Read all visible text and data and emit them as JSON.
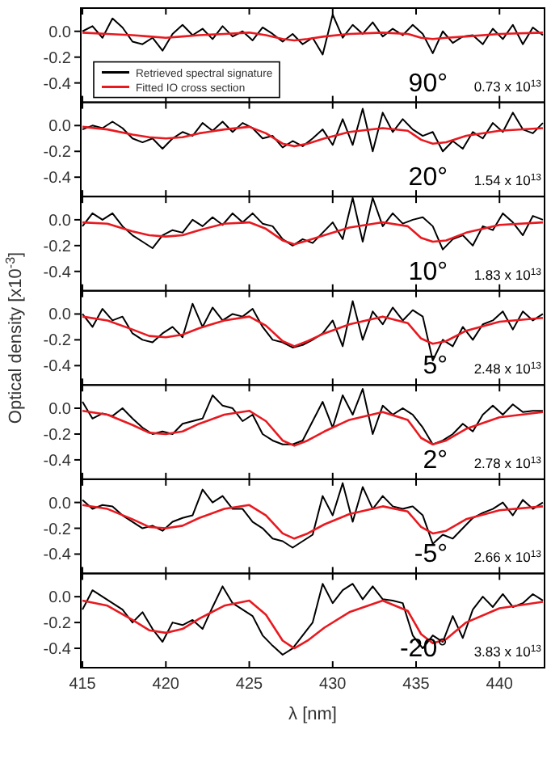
{
  "chart_data": [
    {
      "type": "line",
      "xlim": [
        414.9,
        442.7
      ],
      "ylim": [
        -0.55,
        0.18
      ],
      "xticks": [
        415,
        420,
        425,
        430,
        435,
        440
      ],
      "yticks": [
        {
          "value": 0,
          "label": "0.0"
        },
        {
          "value": -0.2,
          "label": "-0.2"
        },
        {
          "value": -0.4,
          "label": "-0.4"
        }
      ],
      "tick_labels": "y",
      "legend": "bottom left",
      "annotations": [
        "90°",
        "0.73 x 10$^{13}$"
      ],
      "x": [
        415,
        415.6,
        416.2,
        416.8,
        417.4,
        418,
        418.6,
        419.2,
        419.8,
        420.4,
        421,
        421.6,
        422.2,
        422.8,
        423.4,
        424,
        424.6,
        425.2,
        425.8,
        426.4,
        427,
        427.6,
        428.2,
        428.8,
        429.4,
        430,
        430.6,
        431.2,
        431.8,
        432.4,
        433,
        433.6,
        434.2,
        434.8,
        435.4,
        436,
        436.6,
        437.2,
        437.8,
        438.4,
        439,
        439.6,
        440.2,
        440.8,
        441.4,
        442,
        442.6
      ],
      "series": [
        {
          "name": "Retrieved spectral signature",
          "color": "#000000",
          "values": [
            0.0,
            0.04,
            -0.05,
            0.1,
            0.03,
            -0.08,
            -0.1,
            -0.05,
            -0.15,
            -0.02,
            0.05,
            -0.03,
            0.02,
            -0.06,
            0.04,
            -0.04,
            0.0,
            -0.07,
            0.03,
            -0.02,
            -0.08,
            -0.02,
            -0.1,
            -0.05,
            -0.18,
            0.13,
            -0.05,
            0.05,
            -0.02,
            0.07,
            -0.04,
            0.02,
            -0.03,
            0.05,
            -0.02,
            -0.17,
            0.0,
            -0.09,
            -0.04,
            -0.03,
            -0.1,
            0.02,
            -0.06,
            0.05,
            -0.1,
            0.03,
            -0.03
          ]
        },
        {
          "name": "Fitted IO cross section",
          "color": "#e8191f",
          "x": [
            415,
            416.5,
            418,
            419,
            420,
            421,
            422,
            423.5,
            425,
            426,
            427,
            427.7,
            428.5,
            429.5,
            431,
            433,
            434.5,
            435.3,
            436,
            436.8,
            438,
            440,
            442.6
          ],
          "values": [
            -0.01,
            -0.02,
            -0.03,
            -0.04,
            -0.05,
            -0.04,
            -0.03,
            -0.02,
            -0.01,
            -0.03,
            -0.06,
            -0.07,
            -0.06,
            -0.04,
            -0.02,
            -0.01,
            -0.02,
            -0.05,
            -0.06,
            -0.05,
            -0.04,
            -0.02,
            -0.01
          ]
        }
      ]
    },
    {
      "type": "line",
      "xlim": [
        414.9,
        442.7
      ],
      "ylim": [
        -0.55,
        0.18
      ],
      "xticks": [
        415,
        420,
        425,
        430,
        435,
        440
      ],
      "yticks": [
        {
          "value": 0,
          "label": "0.0"
        },
        {
          "value": -0.2,
          "label": "-0.2"
        },
        {
          "value": -0.4,
          "label": "-0.4"
        }
      ],
      "tick_labels": "y",
      "annotations": [
        "20°",
        "1.54 x 10$^{13}$"
      ],
      "x": [
        415,
        415.6,
        416.2,
        416.8,
        417.4,
        418,
        418.6,
        419.2,
        419.8,
        420.4,
        421,
        421.6,
        422.2,
        422.8,
        423.4,
        424,
        424.6,
        425.2,
        425.8,
        426.4,
        427,
        427.6,
        428.2,
        428.8,
        429.4,
        430,
        430.6,
        431.2,
        431.8,
        432.4,
        433,
        433.6,
        434.2,
        434.8,
        435.4,
        436,
        436.6,
        437.2,
        437.8,
        438.4,
        439,
        439.6,
        440.2,
        440.8,
        441.4,
        442,
        442.6
      ],
      "series": [
        {
          "color": "#000000",
          "values": [
            -0.03,
            0.0,
            -0.02,
            0.03,
            -0.02,
            -0.1,
            -0.13,
            -0.1,
            -0.18,
            -0.1,
            -0.05,
            -0.08,
            0.02,
            -0.04,
            0.03,
            -0.05,
            0.02,
            -0.02,
            -0.1,
            -0.08,
            -0.17,
            -0.12,
            -0.16,
            -0.1,
            -0.03,
            -0.15,
            0.05,
            -0.15,
            0.13,
            -0.2,
            0.1,
            -0.05,
            0.05,
            -0.03,
            -0.08,
            -0.05,
            -0.2,
            -0.12,
            -0.18,
            -0.05,
            -0.1,
            0.02,
            -0.05,
            0.1,
            -0.03,
            -0.06,
            0.02
          ]
        },
        {
          "color": "#e8191f",
          "x": [
            415,
            416.5,
            418,
            419,
            420,
            421,
            422,
            423.5,
            425,
            426,
            427,
            427.7,
            428.5,
            429.5,
            431,
            433,
            434.5,
            435.3,
            436,
            436.8,
            438,
            440,
            442.6
          ],
          "values": [
            -0.01,
            -0.03,
            -0.07,
            -0.09,
            -0.1,
            -0.09,
            -0.06,
            -0.03,
            -0.01,
            -0.06,
            -0.14,
            -0.16,
            -0.14,
            -0.1,
            -0.05,
            -0.02,
            -0.04,
            -0.11,
            -0.14,
            -0.13,
            -0.08,
            -0.04,
            -0.02
          ]
        }
      ]
    },
    {
      "type": "line",
      "xlim": [
        414.9,
        442.7
      ],
      "ylim": [
        -0.55,
        0.18
      ],
      "xticks": [
        415,
        420,
        425,
        430,
        435,
        440
      ],
      "yticks": [
        {
          "value": 0,
          "label": "0.0"
        },
        {
          "value": -0.2,
          "label": "-0.2"
        },
        {
          "value": -0.4,
          "label": "-0.4"
        }
      ],
      "tick_labels": "y",
      "annotations": [
        "10°",
        "1.83 x 10$^{13}$"
      ],
      "x": [
        415,
        415.6,
        416.2,
        416.8,
        417.4,
        418,
        418.6,
        419.2,
        419.8,
        420.4,
        421,
        421.6,
        422.2,
        422.8,
        423.4,
        424,
        424.6,
        425.2,
        425.8,
        426.4,
        427,
        427.6,
        428.2,
        428.8,
        429.4,
        430,
        430.6,
        431.2,
        431.8,
        432.4,
        433,
        433.6,
        434.2,
        434.8,
        435.4,
        436,
        436.6,
        437.2,
        437.8,
        438.4,
        439,
        439.6,
        440.2,
        440.8,
        441.4,
        442,
        442.6
      ],
      "series": [
        {
          "color": "#000000",
          "values": [
            -0.05,
            0.05,
            0.0,
            0.05,
            -0.05,
            -0.12,
            -0.17,
            -0.22,
            -0.12,
            -0.08,
            -0.1,
            0.0,
            -0.05,
            0.02,
            -0.04,
            0.05,
            -0.02,
            0.05,
            -0.03,
            -0.05,
            -0.15,
            -0.2,
            -0.15,
            -0.18,
            -0.1,
            -0.02,
            -0.15,
            0.17,
            -0.17,
            0.17,
            -0.05,
            0.05,
            -0.03,
            0.0,
            0.02,
            -0.05,
            -0.23,
            -0.15,
            -0.12,
            -0.2,
            -0.05,
            -0.08,
            0.05,
            -0.02,
            -0.12,
            0.03,
            0.0
          ]
        },
        {
          "color": "#e8191f",
          "x": [
            415,
            416.5,
            418,
            419,
            420,
            421,
            422,
            423.5,
            425,
            426,
            427,
            427.7,
            428.5,
            429.5,
            431,
            433,
            434.5,
            435.3,
            436,
            436.8,
            438,
            440,
            442.6
          ],
          "values": [
            -0.02,
            -0.03,
            -0.09,
            -0.12,
            -0.13,
            -0.12,
            -0.08,
            -0.03,
            -0.02,
            -0.07,
            -0.16,
            -0.19,
            -0.16,
            -0.12,
            -0.06,
            -0.02,
            -0.05,
            -0.14,
            -0.17,
            -0.16,
            -0.1,
            -0.04,
            -0.02
          ]
        }
      ]
    },
    {
      "type": "line",
      "xlim": [
        414.9,
        442.7
      ],
      "ylim": [
        -0.55,
        0.18
      ],
      "xticks": [
        415,
        420,
        425,
        430,
        435,
        440
      ],
      "yticks": [
        {
          "value": 0,
          "label": "0.0"
        },
        {
          "value": -0.2,
          "label": "-0.2"
        },
        {
          "value": -0.4,
          "label": "-0.4"
        }
      ],
      "tick_labels": "y",
      "ylabel": "Optical density [x10$^{-3}$]",
      "annotations": [
        "5°",
        "2.48 x 10$^{13}$"
      ],
      "x": [
        415,
        415.6,
        416.2,
        416.8,
        417.4,
        418,
        418.6,
        419.2,
        419.8,
        420.4,
        421,
        421.6,
        422.2,
        422.8,
        423.4,
        424,
        424.6,
        425.2,
        425.8,
        426.4,
        427,
        427.6,
        428.2,
        428.8,
        429.4,
        430,
        430.6,
        431.2,
        431.8,
        432.4,
        433,
        433.6,
        434.2,
        434.8,
        435.4,
        436,
        436.6,
        437.2,
        437.8,
        438.4,
        439,
        439.6,
        440.2,
        440.8,
        441.4,
        442,
        442.6
      ],
      "series": [
        {
          "color": "#000000",
          "values": [
            0.0,
            -0.1,
            0.04,
            -0.05,
            -0.02,
            -0.15,
            -0.2,
            -0.22,
            -0.15,
            -0.1,
            -0.18,
            0.08,
            -0.1,
            0.05,
            -0.05,
            0.0,
            -0.02,
            0.04,
            -0.1,
            -0.2,
            -0.22,
            -0.26,
            -0.24,
            -0.2,
            -0.15,
            -0.05,
            -0.25,
            0.1,
            -0.2,
            0.02,
            -0.08,
            0.05,
            -0.05,
            0.03,
            -0.02,
            -0.36,
            -0.2,
            -0.25,
            -0.1,
            -0.2,
            -0.08,
            -0.05,
            0.02,
            -0.12,
            0.02,
            -0.05,
            0.0
          ]
        },
        {
          "color": "#e8191f",
          "x": [
            415,
            416.5,
            418,
            419,
            420,
            421,
            422,
            423.5,
            425,
            426,
            427,
            427.7,
            428.5,
            429.5,
            431,
            433,
            434.5,
            435.3,
            436,
            436.8,
            438,
            440,
            442.6
          ],
          "values": [
            -0.02,
            -0.05,
            -0.12,
            -0.17,
            -0.18,
            -0.16,
            -0.11,
            -0.05,
            -0.02,
            -0.09,
            -0.21,
            -0.25,
            -0.21,
            -0.15,
            -0.08,
            -0.02,
            -0.07,
            -0.19,
            -0.23,
            -0.21,
            -0.13,
            -0.06,
            -0.03
          ]
        }
      ]
    },
    {
      "type": "line",
      "xlim": [
        414.9,
        442.7
      ],
      "ylim": [
        -0.55,
        0.18
      ],
      "xticks": [
        415,
        420,
        425,
        430,
        435,
        440
      ],
      "yticks": [
        {
          "value": 0,
          "label": "0.0"
        },
        {
          "value": -0.2,
          "label": "-0.2"
        },
        {
          "value": -0.4,
          "label": "-0.4"
        }
      ],
      "tick_labels": "y",
      "annotations": [
        "2°",
        "2.78 x 10$^{13}$"
      ],
      "x": [
        415,
        415.6,
        416.2,
        416.8,
        417.4,
        418,
        418.6,
        419.2,
        419.8,
        420.4,
        421,
        421.6,
        422.2,
        422.8,
        423.4,
        424,
        424.6,
        425.2,
        425.8,
        426.4,
        427,
        427.6,
        428.2,
        428.8,
        429.4,
        430,
        430.6,
        431.2,
        431.8,
        432.4,
        433,
        433.6,
        434.2,
        434.8,
        435.4,
        436,
        436.6,
        437.2,
        437.8,
        438.4,
        439,
        439.6,
        440.2,
        440.8,
        441.4,
        442,
        442.6
      ],
      "series": [
        {
          "color": "#000000",
          "values": [
            0.05,
            -0.08,
            -0.04,
            -0.06,
            0.0,
            -0.08,
            -0.15,
            -0.2,
            -0.18,
            -0.2,
            -0.12,
            -0.1,
            -0.08,
            0.1,
            0.02,
            0.0,
            -0.1,
            -0.05,
            -0.2,
            -0.25,
            -0.28,
            -0.28,
            -0.25,
            -0.1,
            0.05,
            -0.15,
            0.1,
            -0.05,
            0.15,
            -0.2,
            0.02,
            -0.05,
            0.0,
            -0.05,
            -0.15,
            -0.28,
            -0.25,
            -0.2,
            -0.12,
            -0.18,
            -0.05,
            0.02,
            -0.05,
            0.03,
            -0.03,
            -0.02,
            -0.02
          ]
        },
        {
          "color": "#e8191f",
          "x": [
            415,
            416.5,
            418,
            419,
            420,
            421,
            422,
            423.5,
            425,
            426,
            427,
            427.7,
            428.5,
            429.5,
            431,
            433,
            434.5,
            435.3,
            436,
            436.8,
            438,
            440,
            442.6
          ],
          "values": [
            -0.02,
            -0.05,
            -0.13,
            -0.19,
            -0.2,
            -0.18,
            -0.12,
            -0.05,
            -0.02,
            -0.1,
            -0.25,
            -0.29,
            -0.25,
            -0.18,
            -0.09,
            -0.03,
            -0.09,
            -0.23,
            -0.28,
            -0.25,
            -0.16,
            -0.07,
            -0.03
          ]
        }
      ]
    },
    {
      "type": "line",
      "xlim": [
        414.9,
        442.7
      ],
      "ylim": [
        -0.55,
        0.18
      ],
      "xticks": [
        415,
        420,
        425,
        430,
        435,
        440
      ],
      "yticks": [
        {
          "value": 0,
          "label": "0.0"
        },
        {
          "value": -0.2,
          "label": "-0.2"
        },
        {
          "value": -0.4,
          "label": "-0.4"
        }
      ],
      "tick_labels": "y",
      "annotations": [
        "-5°",
        "2.66 x 10$^{13}$"
      ],
      "x": [
        415,
        415.6,
        416.2,
        416.8,
        417.4,
        418,
        418.6,
        419.2,
        419.8,
        420.4,
        421,
        421.6,
        422.2,
        422.8,
        423.4,
        424,
        424.6,
        425.2,
        425.8,
        426.4,
        427,
        427.6,
        428.2,
        428.8,
        429.4,
        430,
        430.6,
        431.2,
        431.8,
        432.4,
        433,
        433.6,
        434.2,
        434.8,
        435.4,
        436,
        436.6,
        437.2,
        437.8,
        438.4,
        439,
        439.6,
        440.2,
        440.8,
        441.4,
        442,
        442.6
      ],
      "series": [
        {
          "color": "#000000",
          "values": [
            0.02,
            -0.05,
            -0.02,
            -0.03,
            -0.1,
            -0.15,
            -0.2,
            -0.18,
            -0.22,
            -0.15,
            -0.12,
            -0.1,
            0.1,
            0.0,
            0.05,
            -0.05,
            -0.05,
            -0.15,
            -0.2,
            -0.28,
            -0.3,
            -0.35,
            -0.3,
            -0.25,
            0.05,
            -0.1,
            0.15,
            -0.15,
            0.12,
            -0.05,
            0.05,
            -0.03,
            -0.05,
            -0.03,
            -0.1,
            -0.32,
            -0.25,
            -0.28,
            -0.2,
            -0.12,
            -0.08,
            -0.05,
            0.0,
            -0.1,
            0.02,
            -0.05,
            0.0
          ]
        },
        {
          "color": "#e8191f",
          "x": [
            415,
            416.5,
            418,
            419,
            420,
            421,
            422,
            423.5,
            425,
            426,
            427,
            427.7,
            428.5,
            429.5,
            431,
            433,
            434.5,
            435.3,
            436,
            436.8,
            438,
            440,
            442.6
          ],
          "values": [
            -0.02,
            -0.05,
            -0.13,
            -0.19,
            -0.2,
            -0.18,
            -0.12,
            -0.05,
            -0.02,
            -0.1,
            -0.24,
            -0.28,
            -0.24,
            -0.17,
            -0.09,
            -0.03,
            -0.07,
            -0.19,
            -0.24,
            -0.22,
            -0.13,
            -0.06,
            -0.03
          ]
        }
      ]
    },
    {
      "type": "line",
      "xlim": [
        414.9,
        442.7
      ],
      "ylim": [
        -0.55,
        0.18
      ],
      "xticks": [
        415,
        420,
        425,
        430,
        435,
        440
      ],
      "yticks": [
        {
          "value": 0,
          "label": "0.0"
        },
        {
          "value": -0.2,
          "label": "-0.2"
        },
        {
          "value": -0.4,
          "label": "-0.4"
        }
      ],
      "xlabel": "λ [nm]",
      "annotations": [
        "-20°",
        "3.83 x 10$^{13}$"
      ],
      "x": [
        415,
        415.6,
        416.2,
        416.8,
        417.4,
        418,
        418.6,
        419.2,
        419.8,
        420.4,
        421,
        421.6,
        422.2,
        422.8,
        423.4,
        424,
        424.6,
        425.2,
        425.8,
        426.4,
        427,
        427.6,
        428.2,
        428.8,
        429.4,
        430,
        430.6,
        431.2,
        431.8,
        432.4,
        433,
        433.6,
        434.2,
        434.8,
        435.4,
        436,
        436.6,
        437.2,
        437.8,
        438.4,
        439,
        439.6,
        440.2,
        440.8,
        441.4,
        442,
        442.6
      ],
      "series": [
        {
          "color": "#000000",
          "values": [
            -0.1,
            0.05,
            0.0,
            -0.05,
            -0.1,
            -0.2,
            -0.12,
            -0.25,
            -0.35,
            -0.2,
            -0.22,
            -0.18,
            -0.25,
            -0.08,
            0.08,
            -0.05,
            -0.1,
            -0.15,
            -0.3,
            -0.38,
            -0.45,
            -0.4,
            -0.3,
            -0.2,
            0.1,
            -0.05,
            0.05,
            0.1,
            -0.02,
            0.08,
            -0.02,
            -0.03,
            -0.05,
            -0.3,
            -0.4,
            -0.3,
            -0.35,
            -0.15,
            -0.32,
            -0.1,
            0.0,
            -0.08,
            0.02,
            -0.08,
            -0.05,
            0.02,
            -0.03
          ]
        },
        {
          "color": "#e8191f",
          "x": [
            415,
            416.5,
            418,
            419,
            420,
            421,
            422,
            423.5,
            425,
            426,
            427,
            427.7,
            428.5,
            429.5,
            431,
            433,
            434.5,
            435.3,
            436,
            436.8,
            438,
            440,
            442.6
          ],
          "values": [
            -0.03,
            -0.07,
            -0.18,
            -0.26,
            -0.28,
            -0.25,
            -0.17,
            -0.07,
            -0.03,
            -0.14,
            -0.34,
            -0.4,
            -0.34,
            -0.24,
            -0.12,
            -0.03,
            -0.11,
            -0.29,
            -0.36,
            -0.33,
            -0.2,
            -0.09,
            -0.04
          ]
        }
      ]
    }
  ]
}
